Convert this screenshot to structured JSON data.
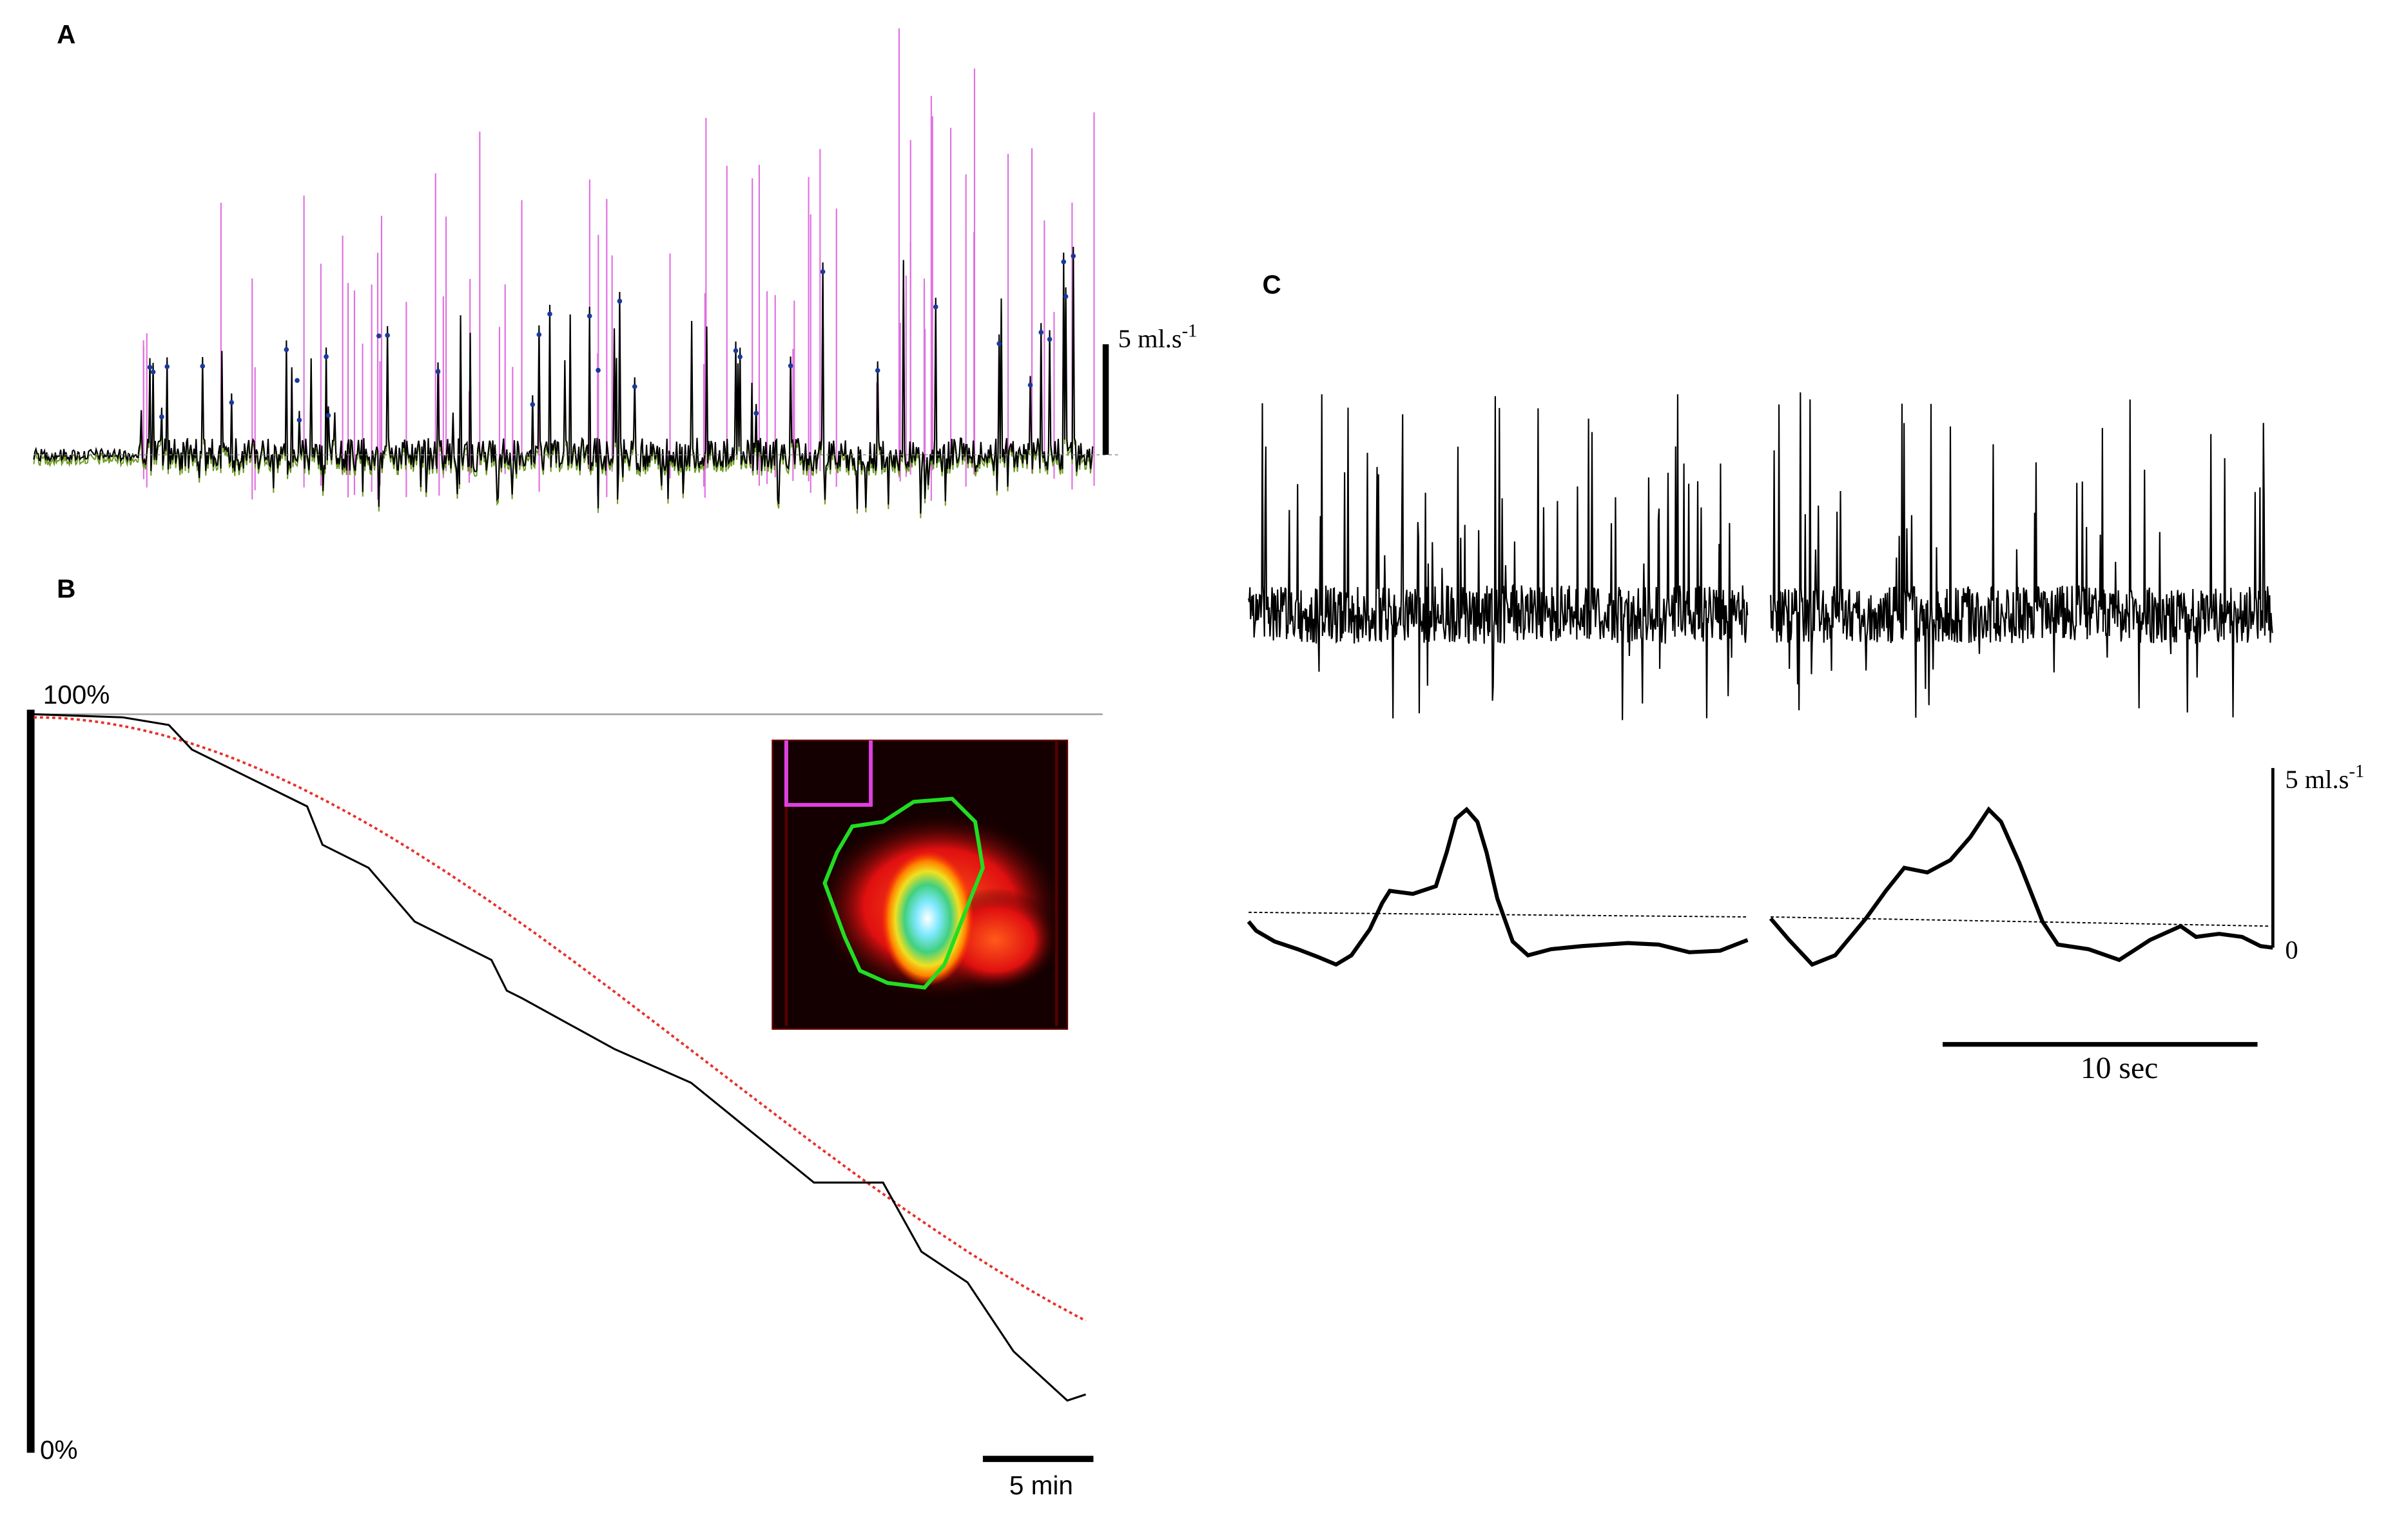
{
  "panels": [
    {
      "label": "A",
      "scale_label": {
        "text": "5 ml.s",
        "superscript": "-1"
      }
    },
    {
      "label": "B",
      "top_label": "100%",
      "bottom_label": "0%",
      "time_scale": "5 min"
    },
    {
      "label": "C",
      "scale_label": {
        "text": "5 ml.s",
        "superscript": "-1"
      },
      "zero_label": "0",
      "time_scale": "10 sec"
    }
  ]
}
